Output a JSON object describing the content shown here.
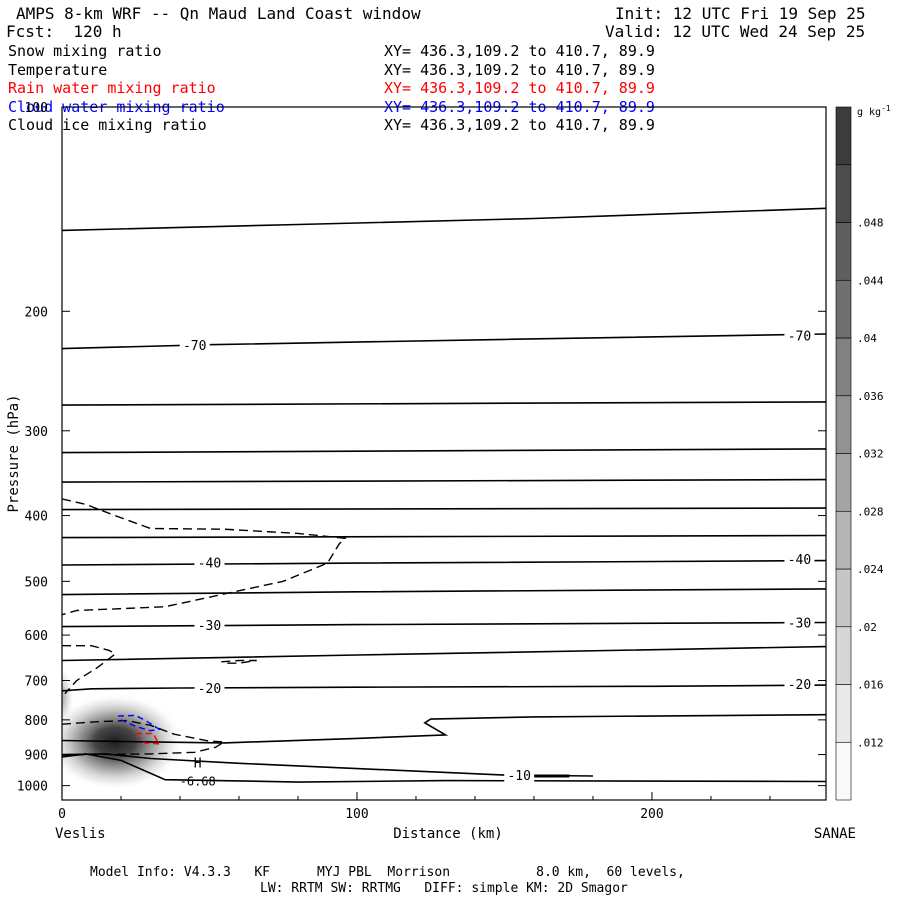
{
  "header": {
    "title": "AMPS 8-km WRF -- Qn Maud Land Coast window",
    "init": "Init: 12 UTC Fri 19 Sep 25",
    "fcst": "Fcst:  120 h",
    "valid": "Valid: 12 UTC Wed 24 Sep 25"
  },
  "fields": [
    {
      "name": "Snow mixing ratio",
      "xy": "XY= 436.3,109.2 to 410.7, 89.9",
      "color": "#000000"
    },
    {
      "name": "Temperature",
      "xy": "XY= 436.3,109.2 to 410.7, 89.9",
      "color": "#000000"
    },
    {
      "name": "Rain water mixing ratio",
      "xy": "XY= 436.3,109.2 to 410.7, 89.9",
      "color": "#ff0000"
    },
    {
      "name": "Cloud water mixing ratio",
      "xy": "XY= 436.3,109.2 to 410.7, 89.9",
      "color": "#0000ff"
    },
    {
      "name": "Cloud ice mixing ratio",
      "xy": "XY= 436.3,109.2 to 410.7, 89.9",
      "color": "#000000"
    }
  ],
  "chart_data": {
    "type": "cross-section",
    "ylabel": "Pressure (hPa)",
    "xlabel": "Distance (km)",
    "x_range": [
      0,
      259
    ],
    "y_range": [
      1050,
      100
    ],
    "y_scale": "log",
    "x_ticks": [
      0,
      100,
      200
    ],
    "y_ticks": [
      100,
      200,
      300,
      400,
      500,
      600,
      700,
      800,
      900,
      1000
    ],
    "endpoints": {
      "left": "Veslis",
      "right": "SANAE"
    },
    "temperature_labels": [
      {
        "text": "-70",
        "x": 45,
        "p": 225
      },
      {
        "text": "-70",
        "x": 250,
        "p": 218
      },
      {
        "text": "-40",
        "x": 50,
        "p": 471
      },
      {
        "text": "-40",
        "x": 250,
        "p": 465
      },
      {
        "text": "-30",
        "x": 50,
        "p": 582
      },
      {
        "text": "-30",
        "x": 250,
        "p": 577
      },
      {
        "text": "-20",
        "x": 50,
        "p": 720
      },
      {
        "text": "-20",
        "x": 250,
        "p": 711
      },
      {
        "text": "-10",
        "x": 155,
        "p": 968
      }
    ],
    "temperature_lines": [
      {
        "x": [
          0,
          80,
          160,
          259
        ],
        "p": [
          152,
          149,
          146,
          141
        ]
      },
      {
        "x": [
          0,
          50,
          150,
          259
        ],
        "p": [
          227,
          224,
          220,
          216
        ]
      },
      {
        "x": [
          0,
          259
        ],
        "p": [
          275,
          272
        ]
      },
      {
        "x": [
          0,
          259
        ],
        "p": [
          323,
          319
        ]
      },
      {
        "x": [
          0,
          259
        ],
        "p": [
          357,
          354
        ]
      },
      {
        "x": [
          0,
          259
        ],
        "p": [
          392,
          390
        ]
      },
      {
        "x": [
          0,
          259
        ],
        "p": [
          431,
          428
        ]
      },
      {
        "x": [
          0,
          100,
          259
        ],
        "p": [
          473,
          470,
          466
        ]
      },
      {
        "x": [
          0,
          100,
          259
        ],
        "p": [
          523,
          518,
          513
        ]
      },
      {
        "x": [
          0,
          100,
          259
        ],
        "p": [
          583,
          579,
          575
        ]
      },
      {
        "x": [
          0,
          100,
          259
        ],
        "p": [
          654,
          642,
          624
        ]
      },
      {
        "x": [
          0,
          10,
          40,
          100,
          200,
          259
        ],
        "p": [
          725,
          720,
          718,
          716,
          714,
          711
        ]
      },
      {
        "x": [
          0,
          30,
          55,
          100,
          130,
          123,
          125,
          160,
          259
        ],
        "p": [
          858,
          862,
          865,
          852,
          842,
          808,
          798,
          792,
          786
        ]
      },
      {
        "x": [
          0,
          15,
          30,
          60,
          150,
          180
        ],
        "p": [
          900,
          898,
          912,
          927,
          965,
          968
        ]
      },
      {
        "x": [
          0,
          8,
          20,
          35,
          60,
          80,
          130,
          259
        ],
        "p": [
          907,
          898,
          918,
          980,
          984,
          988,
          983,
          986
        ]
      }
    ],
    "high_marker": {
      "text": "H",
      "value": "-6.68",
      "x": 46,
      "p": 972
    },
    "snow_max": {
      "x": 18,
      "p": 862,
      "value": "0.05"
    },
    "shading_colorbar": {
      "units": "g kg-1",
      "levels": [
        ".012",
        ".016",
        ".02",
        ".024",
        ".028",
        ".032",
        ".036",
        ".04",
        ".044",
        ".048"
      ]
    },
    "cloud_ice_contour_dashed": true,
    "rain_contour_color": "#ff0000",
    "cloud_water_contour_color": "#0000ff"
  },
  "footer": {
    "line1": "Model Info: V4.3.3   KF      MYJ PBL  Morrison           8.0 km,  60 levels,",
    "line2": "LW: RRTM SW: RRTMG   DIFF: simple KM: 2D Smagor"
  }
}
